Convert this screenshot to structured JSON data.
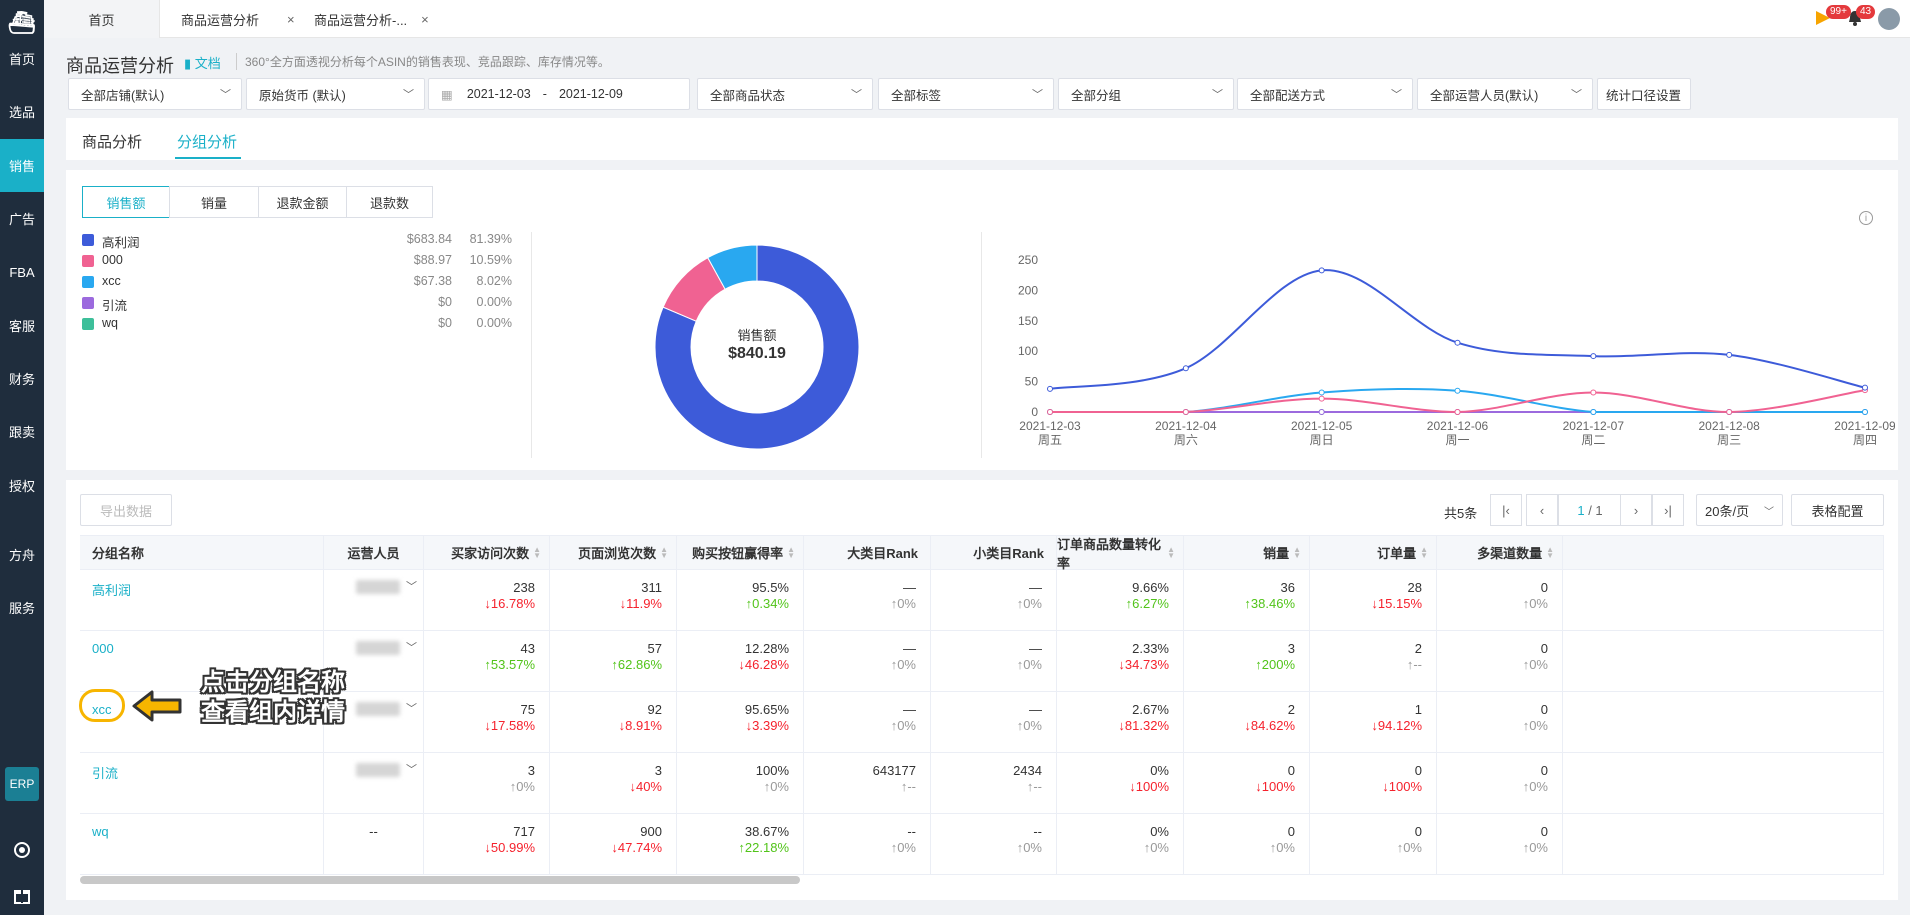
{
  "sidebar": {
    "logo": "⛴",
    "items": [
      "首页",
      "选品",
      "销售",
      "广告",
      "FBA",
      "客服",
      "财务",
      "跟卖",
      "授权",
      "方舟",
      "服务"
    ],
    "active_index": 2,
    "erp": "ERP"
  },
  "tabs": {
    "home": "首页",
    "tab1": "商品运营分析",
    "tab2": "商品运营分析-...",
    "close": "×"
  },
  "top_right": {
    "flag_badge": "99+",
    "bell_badge": "43"
  },
  "header": {
    "title": "商品运营分析",
    "doc": "文档",
    "desc": "360°全方面透视分析每个ASIN的销售表现、竞品跟踪、库存情况等。"
  },
  "filters": {
    "shop": "全部店铺(默认)",
    "currency": "原始货币 (默认)",
    "date_start": "2021-12-03",
    "date_sep": "-",
    "date_end": "2021-12-09",
    "status": "全部商品状态",
    "tags": "全部标签",
    "groups": "全部分组",
    "delivery": "全部配送方式",
    "operators": "全部运营人员(默认)",
    "stat_setting": "统计口径设置"
  },
  "main_tabs": [
    "商品分析",
    "分组分析"
  ],
  "metric_tabs": [
    "销售额",
    "销量",
    "退款金额",
    "退款数"
  ],
  "legend": [
    {
      "name": "高利润",
      "value": "$683.84",
      "pct": "81.39%",
      "color": "#3d5bd9"
    },
    {
      "name": "000",
      "value": "$88.97",
      "pct": "10.59%",
      "color": "#f06292"
    },
    {
      "name": "xcc",
      "value": "$67.38",
      "pct": "8.02%",
      "color": "#29a8f0"
    },
    {
      "name": "引流",
      "value": "$0",
      "pct": "0.00%",
      "color": "#9c6ade"
    },
    {
      "name": "wq",
      "value": "$0",
      "pct": "0.00%",
      "color": "#3dbf9a"
    }
  ],
  "donut": {
    "label": "销售额",
    "total": "$840.19"
  },
  "chart_data": {
    "type": "line",
    "x": [
      "2021-12-03",
      "2021-12-04",
      "2021-12-05",
      "2021-12-06",
      "2021-12-07",
      "2021-12-08",
      "2021-12-09"
    ],
    "x_weekday": [
      "周五",
      "周六",
      "周日",
      "周一",
      "周二",
      "周三",
      "周四"
    ],
    "yticks": [
      "250",
      "200",
      "150",
      "100",
      "50",
      "0"
    ],
    "ylim": [
      0,
      250
    ],
    "grid": false,
    "series": [
      {
        "name": "高利润",
        "color": "#3d5bd9",
        "values": [
          38,
          72,
          233,
          114,
          92,
          94,
          40
        ]
      },
      {
        "name": "000",
        "color": "#f06292",
        "values": [
          0,
          0,
          22,
          0,
          32,
          0,
          36
        ]
      },
      {
        "name": "xcc",
        "color": "#29a8f0",
        "values": [
          0,
          0,
          32,
          35,
          0,
          0,
          0
        ]
      },
      {
        "name": "引流",
        "color": "#9c6ade",
        "values": [
          0,
          0,
          0,
          0,
          0,
          0,
          0
        ]
      },
      {
        "name": "wq",
        "color": "#3dbf9a",
        "values": [
          0,
          0,
          0,
          0,
          0,
          0,
          0
        ]
      }
    ]
  },
  "toolbar": {
    "export": "导出数据",
    "total": "共5条",
    "page": "1",
    "page_total": "/ 1",
    "per_page": "20条/页",
    "table_config": "表格配置"
  },
  "table": {
    "headers": [
      "分组名称",
      "运营人员",
      "买家访问次数",
      "页面浏览次数",
      "购买按钮赢得率",
      "大类目Rank",
      "小类目Rank",
      "订单商品数量转化率",
      "销量",
      "订单量",
      "多渠道数量"
    ],
    "rows": [
      {
        "name": "高利润",
        "operator": "",
        "cells": [
          [
            "238",
            "↓16.78%",
            "down"
          ],
          [
            "311",
            "↓11.9%",
            "down"
          ],
          [
            "95.5%",
            "↑0.34%",
            "up"
          ],
          [
            "—",
            "↑0%",
            "flat"
          ],
          [
            "—",
            "↑0%",
            "flat"
          ],
          [
            "9.66%",
            "↑6.27%",
            "up"
          ],
          [
            "36",
            "↑38.46%",
            "up"
          ],
          [
            "28",
            "↓15.15%",
            "down"
          ],
          [
            "0",
            "↑0%",
            "flat"
          ]
        ]
      },
      {
        "name": "000",
        "operator": "",
        "cells": [
          [
            "43",
            "↑53.57%",
            "up"
          ],
          [
            "57",
            "↑62.86%",
            "up"
          ],
          [
            "12.28%",
            "↓46.28%",
            "down"
          ],
          [
            "—",
            "↑0%",
            "flat"
          ],
          [
            "—",
            "↑0%",
            "flat"
          ],
          [
            "2.33%",
            "↓34.73%",
            "down"
          ],
          [
            "3",
            "↑200%",
            "up"
          ],
          [
            "2",
            "↑--",
            "flat"
          ],
          [
            "0",
            "↑0%",
            "flat"
          ]
        ]
      },
      {
        "name": "xcc",
        "operator": "",
        "cells": [
          [
            "75",
            "↓17.58%",
            "down"
          ],
          [
            "92",
            "↓8.91%",
            "down"
          ],
          [
            "95.65%",
            "↓3.39%",
            "down"
          ],
          [
            "—",
            "↑0%",
            "flat"
          ],
          [
            "—",
            "↑0%",
            "flat"
          ],
          [
            "2.67%",
            "↓81.32%",
            "down"
          ],
          [
            "2",
            "↓84.62%",
            "down"
          ],
          [
            "1",
            "↓94.12%",
            "down"
          ],
          [
            "0",
            "↑0%",
            "flat"
          ]
        ]
      },
      {
        "name": "引流",
        "operator": "",
        "cells": [
          [
            "3",
            "↑0%",
            "flat"
          ],
          [
            "3",
            "↓40%",
            "down"
          ],
          [
            "100%",
            "↑0%",
            "flat"
          ],
          [
            "643177",
            "↑--",
            "flat"
          ],
          [
            "2434",
            "↑--",
            "flat"
          ],
          [
            "0%",
            "↓100%",
            "down"
          ],
          [
            "0",
            "↓100%",
            "down"
          ],
          [
            "0",
            "↓100%",
            "down"
          ],
          [
            "0",
            "↑0%",
            "flat"
          ]
        ]
      },
      {
        "name": "wq",
        "operator": "--",
        "cells": [
          [
            "717",
            "↓50.99%",
            "down"
          ],
          [
            "900",
            "↓47.74%",
            "down"
          ],
          [
            "38.67%",
            "↑22.18%",
            "up"
          ],
          [
            "--",
            "↑0%",
            "flat"
          ],
          [
            "--",
            "↑0%",
            "flat"
          ],
          [
            "0%",
            "↑0%",
            "flat"
          ],
          [
            "0",
            "↑0%",
            "flat"
          ],
          [
            "0",
            "↑0%",
            "flat"
          ],
          [
            "0",
            "↑0%",
            "flat"
          ]
        ]
      }
    ]
  },
  "annotation": {
    "line1": "点击分组名称",
    "line2": "查看组内详情"
  }
}
